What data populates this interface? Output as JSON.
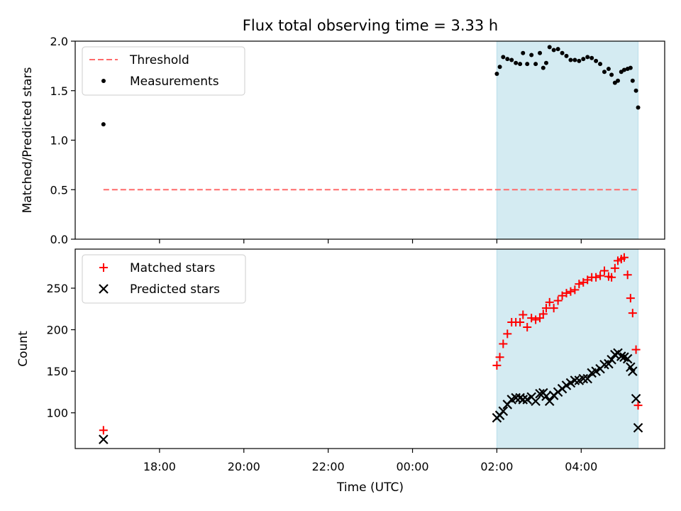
{
  "chart_data": {
    "title": "Flux total observing time = 3.33 h",
    "xlabel": "Time (UTC)",
    "x_tick_labels": [
      "18:00",
      "20:00",
      "22:00",
      "00:00",
      "02:00",
      "04:00"
    ],
    "x_tick_hours": [
      18,
      20,
      22,
      24,
      26,
      28
    ],
    "xlim_hours": [
      16.0,
      29.98
    ],
    "observing_window_hours": [
      26.0,
      29.35
    ],
    "observing_window_color": "#add8e6",
    "panels": [
      {
        "type": "scatter",
        "ylabel": "Matched/Predicted stars",
        "ylim": [
          0.0,
          2.0
        ],
        "y_ticks": [
          0.0,
          0.5,
          1.0,
          1.5,
          2.0
        ],
        "y_tick_labels": [
          "0.0",
          "0.5",
          "1.0",
          "1.5",
          "2.0"
        ],
        "legend": {
          "placement": "upper-left",
          "entries": [
            "Threshold",
            "Measurements"
          ]
        },
        "threshold": {
          "name": "Threshold",
          "value": 0.5,
          "x_range": [
            16.67,
            29.35
          ],
          "color": "#ff6b6b",
          "style": "dashed"
        },
        "series": [
          {
            "name": "Measurements",
            "marker": "dot",
            "color": "#000000",
            "x": [
              16.67,
              26.0,
              26.07,
              26.15,
              26.25,
              26.35,
              26.45,
              26.55,
              26.62,
              26.72,
              26.82,
              26.92,
              27.02,
              27.1,
              27.17,
              27.25,
              27.35,
              27.45,
              27.55,
              27.65,
              27.75,
              27.85,
              27.95,
              28.05,
              28.15,
              28.25,
              28.35,
              28.45,
              28.55,
              28.65,
              28.72,
              28.8,
              28.87,
              28.95,
              29.02,
              29.1,
              29.17,
              29.22,
              29.3
            ],
            "y": [
              1.16,
              1.67,
              1.74,
              1.84,
              1.82,
              1.81,
              1.78,
              1.77,
              1.88,
              1.77,
              1.86,
              1.77,
              1.88,
              1.73,
              1.78,
              1.94,
              1.91,
              1.92,
              1.88,
              1.85,
              1.81,
              1.81,
              1.8,
              1.82,
              1.84,
              1.83,
              1.8,
              1.77,
              1.69,
              1.72,
              1.66,
              1.58,
              1.6,
              1.69,
              1.71,
              1.72,
              1.73,
              1.6,
              1.5
            ]
          },
          {
            "name": "",
            "marker": "dot",
            "color": "#000000",
            "x": [
              29.35
            ],
            "y": [
              1.33
            ]
          }
        ]
      },
      {
        "type": "scatter",
        "ylabel": "Count",
        "ylim": [
          57,
          297
        ],
        "y_ticks": [
          100,
          150,
          200,
          250
        ],
        "y_tick_labels": [
          "100",
          "150",
          "200",
          "250"
        ],
        "legend": {
          "placement": "upper-left",
          "entries": [
            "Matched stars",
            "Predicted stars"
          ]
        },
        "series": [
          {
            "name": "Matched stars",
            "marker": "plus",
            "color": "#ff0000",
            "x": [
              16.67,
              26.0,
              26.07,
              26.15,
              26.25,
              26.35,
              26.45,
              26.55,
              26.62,
              26.72,
              26.82,
              26.92,
              27.02,
              27.1,
              27.17,
              27.25,
              27.35,
              27.45,
              27.55,
              27.65,
              27.75,
              27.85,
              27.95,
              28.05,
              28.15,
              28.25,
              28.35,
              28.45,
              28.55,
              28.65,
              28.72,
              28.8,
              28.87,
              28.95,
              29.02,
              29.1,
              29.17,
              29.22,
              29.3,
              29.35
            ],
            "y": [
              79,
              157,
              167,
              183,
              195,
              209,
              209,
              209,
              218,
              203,
              214,
              212,
              214,
              219,
              226,
              233,
              226,
              235,
              241,
              244,
              246,
              248,
              255,
              257,
              260,
              263,
              263,
              265,
              271,
              264,
              263,
              274,
              283,
              285,
              287,
              266,
              238,
              220,
              176,
              109
            ]
          },
          {
            "name": "Predicted stars",
            "marker": "x",
            "color": "#000000",
            "x": [
              16.67,
              26.0,
              26.07,
              26.15,
              26.25,
              26.35,
              26.45,
              26.55,
              26.62,
              26.72,
              26.82,
              26.92,
              27.02,
              27.1,
              27.17,
              27.25,
              27.35,
              27.45,
              27.55,
              27.65,
              27.75,
              27.85,
              27.95,
              28.05,
              28.15,
              28.25,
              28.35,
              28.45,
              28.55,
              28.65,
              28.72,
              28.8,
              28.87,
              28.95,
              29.02,
              29.1,
              29.17,
              29.22,
              29.3,
              29.35
            ],
            "y": [
              68,
              94,
              97,
              102,
              110,
              116,
              118,
              118,
              116,
              116,
              119,
              114,
              123,
              124,
              120,
              114,
              121,
              125,
              129,
              133,
              136,
              139,
              139,
              141,
              141,
              148,
              150,
              153,
              158,
              159,
              164,
              170,
              172,
              168,
              167,
              165,
              155,
              150,
              117,
              82
            ]
          }
        ]
      }
    ]
  }
}
